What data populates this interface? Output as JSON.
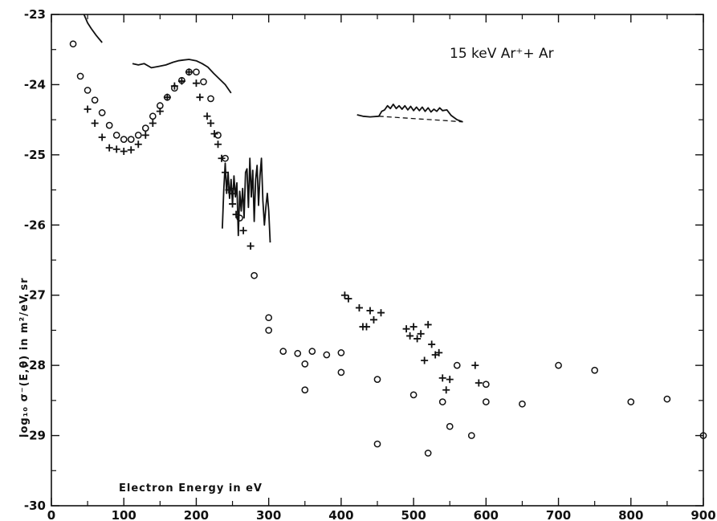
{
  "chart_data": {
    "type": "scatter",
    "title": "",
    "annotation": "15 keV Ar⁺+ Ar",
    "xlabel": "Electron Energy in eV",
    "ylabel": "log₁₀ σ⁻(E,θ)  in m²/eV sr",
    "xlim": [
      0,
      900
    ],
    "ylim": [
      -30,
      -23
    ],
    "x_ticks": [
      0,
      100,
      200,
      300,
      400,
      500,
      600,
      700,
      800,
      900
    ],
    "y_ticks": [
      -30,
      -29,
      -28,
      -27,
      -26,
      -25,
      -24,
      -23
    ],
    "grid": false,
    "series": [
      {
        "marker": "circle",
        "points": [
          [
            30,
            -23.42
          ],
          [
            40,
            -23.88
          ],
          [
            50,
            -24.08
          ],
          [
            60,
            -24.22
          ],
          [
            70,
            -24.4
          ],
          [
            80,
            -24.58
          ],
          [
            90,
            -24.72
          ],
          [
            100,
            -24.78
          ],
          [
            110,
            -24.78
          ],
          [
            120,
            -24.72
          ],
          [
            130,
            -24.62
          ],
          [
            140,
            -24.45
          ],
          [
            150,
            -24.3
          ],
          [
            160,
            -24.18
          ],
          [
            170,
            -24.05
          ],
          [
            180,
            -23.94
          ],
          [
            190,
            -23.82
          ],
          [
            200,
            -23.82
          ],
          [
            210,
            -23.96
          ],
          [
            220,
            -24.2
          ],
          [
            230,
            -24.72
          ],
          [
            240,
            -25.05
          ],
          [
            250,
            -25.52
          ],
          [
            260,
            -25.9
          ],
          [
            280,
            -26.72
          ],
          [
            300,
            -27.32
          ],
          [
            300,
            -27.5
          ],
          [
            320,
            -27.8
          ],
          [
            340,
            -27.83
          ],
          [
            350,
            -27.98
          ],
          [
            350,
            -28.35
          ],
          [
            360,
            -27.8
          ],
          [
            380,
            -27.85
          ],
          [
            400,
            -27.82
          ],
          [
            400,
            -28.1
          ],
          [
            450,
            -28.2
          ],
          [
            450,
            -29.12
          ],
          [
            500,
            -28.42
          ],
          [
            520,
            -29.25
          ],
          [
            540,
            -28.52
          ],
          [
            550,
            -28.87
          ],
          [
            560,
            -28.0
          ],
          [
            580,
            -29.0
          ],
          [
            600,
            -28.27
          ],
          [
            600,
            -28.52
          ],
          [
            650,
            -28.55
          ],
          [
            700,
            -28.0
          ],
          [
            750,
            -28.07
          ],
          [
            800,
            -28.52
          ],
          [
            850,
            -28.48
          ],
          [
            900,
            -29.0
          ]
        ]
      },
      {
        "marker": "plus",
        "points": [
          [
            50,
            -24.35
          ],
          [
            60,
            -24.55
          ],
          [
            70,
            -24.75
          ],
          [
            80,
            -24.9
          ],
          [
            90,
            -24.92
          ],
          [
            100,
            -24.95
          ],
          [
            110,
            -24.93
          ],
          [
            120,
            -24.85
          ],
          [
            130,
            -24.72
          ],
          [
            140,
            -24.55
          ],
          [
            150,
            -24.38
          ],
          [
            160,
            -24.18
          ],
          [
            170,
            -24.02
          ],
          [
            180,
            -23.95
          ],
          [
            190,
            -23.82
          ],
          [
            200,
            -23.98
          ],
          [
            205,
            -24.18
          ],
          [
            215,
            -24.45
          ],
          [
            220,
            -24.55
          ],
          [
            225,
            -24.7
          ],
          [
            230,
            -24.85
          ],
          [
            235,
            -25.05
          ],
          [
            240,
            -25.25
          ],
          [
            245,
            -25.5
          ],
          [
            250,
            -25.7
          ],
          [
            255,
            -25.85
          ],
          [
            265,
            -26.08
          ],
          [
            275,
            -26.3
          ],
          [
            405,
            -27.0
          ],
          [
            410,
            -27.05
          ],
          [
            425,
            -27.18
          ],
          [
            430,
            -27.45
          ],
          [
            435,
            -27.45
          ],
          [
            440,
            -27.22
          ],
          [
            445,
            -27.35
          ],
          [
            455,
            -27.25
          ],
          [
            490,
            -27.48
          ],
          [
            495,
            -27.58
          ],
          [
            500,
            -27.45
          ],
          [
            505,
            -27.62
          ],
          [
            510,
            -27.55
          ],
          [
            515,
            -27.93
          ],
          [
            520,
            -27.42
          ],
          [
            525,
            -27.7
          ],
          [
            530,
            -27.85
          ],
          [
            535,
            -27.82
          ],
          [
            540,
            -28.18
          ],
          [
            545,
            -28.35
          ],
          [
            550,
            -28.2
          ],
          [
            585,
            -28.0
          ],
          [
            590,
            -28.25
          ]
        ]
      }
    ],
    "curves": [
      [
        [
          45,
          -23.0
        ],
        [
          50,
          -23.12
        ],
        [
          55,
          -23.2
        ],
        [
          62,
          -23.3
        ],
        [
          70,
          -23.4
        ]
      ],
      [
        [
          112,
          -23.7
        ],
        [
          120,
          -23.72
        ],
        [
          128,
          -23.7
        ],
        [
          138,
          -23.76
        ],
        [
          148,
          -23.74
        ],
        [
          158,
          -23.72
        ],
        [
          168,
          -23.68
        ],
        [
          175,
          -23.66
        ],
        [
          182,
          -23.65
        ],
        [
          190,
          -23.64
        ],
        [
          200,
          -23.66
        ],
        [
          208,
          -23.7
        ],
        [
          216,
          -23.75
        ],
        [
          224,
          -23.84
        ],
        [
          232,
          -23.92
        ],
        [
          240,
          -24.0
        ],
        [
          248,
          -24.12
        ]
      ],
      [
        [
          236,
          -26.05
        ],
        [
          238,
          -25.5
        ],
        [
          240,
          -25.12
        ],
        [
          242,
          -25.55
        ],
        [
          244,
          -25.25
        ],
        [
          246,
          -25.62
        ],
        [
          248,
          -25.35
        ],
        [
          250,
          -25.7
        ],
        [
          252,
          -25.3
        ],
        [
          254,
          -25.6
        ],
        [
          256,
          -25.4
        ],
        [
          258,
          -26.15
        ],
        [
          260,
          -25.52
        ],
        [
          262,
          -25.8
        ],
        [
          264,
          -25.48
        ],
        [
          266,
          -25.9
        ],
        [
          268,
          -25.25
        ],
        [
          270,
          -25.2
        ],
        [
          272,
          -25.75
        ],
        [
          274,
          -25.05
        ],
        [
          276,
          -25.6
        ],
        [
          278,
          -25.22
        ],
        [
          280,
          -25.95
        ],
        [
          282,
          -25.35
        ],
        [
          284,
          -25.15
        ],
        [
          286,
          -25.72
        ],
        [
          288,
          -25.3
        ],
        [
          290,
          -25.05
        ],
        [
          292,
          -25.65
        ],
        [
          294,
          -26.0
        ],
        [
          296,
          -25.75
        ],
        [
          298,
          -25.55
        ],
        [
          300,
          -25.8
        ],
        [
          302,
          -26.25
        ]
      ],
      [
        [
          422,
          -24.43
        ],
        [
          430,
          -24.45
        ],
        [
          440,
          -24.46
        ],
        [
          452,
          -24.45
        ],
        [
          456,
          -24.38
        ],
        [
          460,
          -24.36
        ],
        [
          464,
          -24.3
        ],
        [
          468,
          -24.34
        ],
        [
          472,
          -24.28
        ],
        [
          476,
          -24.34
        ],
        [
          480,
          -24.3
        ],
        [
          484,
          -24.35
        ],
        [
          488,
          -24.3
        ],
        [
          492,
          -24.36
        ],
        [
          496,
          -24.31
        ],
        [
          500,
          -24.37
        ],
        [
          504,
          -24.32
        ],
        [
          508,
          -24.37
        ],
        [
          512,
          -24.32
        ],
        [
          516,
          -24.38
        ],
        [
          520,
          -24.33
        ],
        [
          524,
          -24.39
        ],
        [
          528,
          -24.35
        ],
        [
          532,
          -24.38
        ],
        [
          536,
          -24.33
        ],
        [
          540,
          -24.37
        ],
        [
          546,
          -24.36
        ],
        [
          552,
          -24.44
        ],
        [
          560,
          -24.5
        ],
        [
          568,
          -24.53
        ]
      ]
    ],
    "dashed_curves": [
      [
        [
          452,
          -24.45
        ],
        [
          480,
          -24.47
        ],
        [
          510,
          -24.49
        ],
        [
          540,
          -24.51
        ],
        [
          568,
          -24.53
        ]
      ]
    ]
  }
}
